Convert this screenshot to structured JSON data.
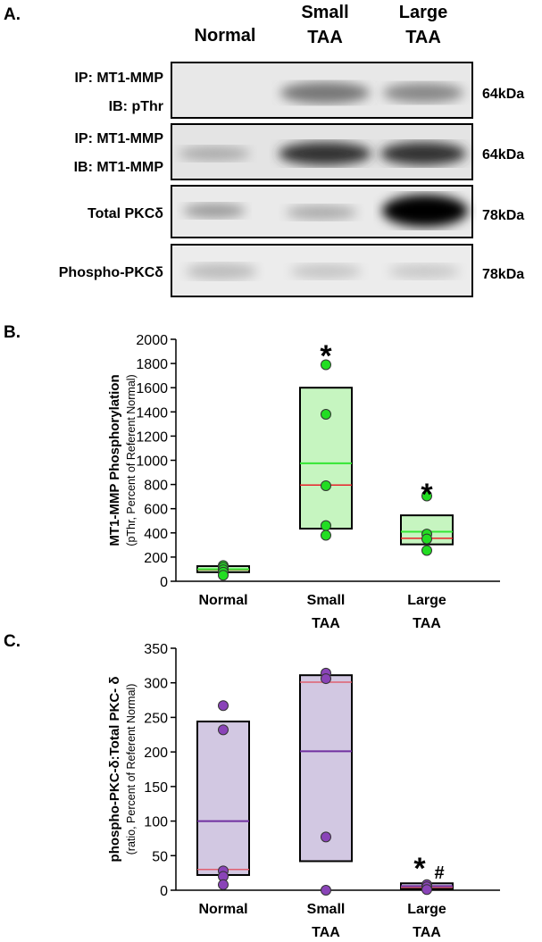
{
  "blot": {
    "panel_label": "A.",
    "columns": [
      [
        "Normal"
      ],
      [
        "Small",
        "TAA"
      ],
      [
        "Large",
        "TAA"
      ]
    ],
    "rows": [
      {
        "label": [
          "IP: MT1-MMP",
          "IB: pThr"
        ],
        "size": "64kDa"
      },
      {
        "label": [
          "IP: MT1-MMP",
          "IB: MT1-MMP"
        ],
        "size": "64kDa"
      },
      {
        "label": [
          "Total PKCδ"
        ],
        "size": "78kDa"
      },
      {
        "label": [
          "Phospho-PKCδ"
        ],
        "size": "78kDa"
      }
    ]
  },
  "chart_data": [
    {
      "type": "box",
      "panel_label": "B.",
      "ylabel": "MT1-MMP Phosphorylation",
      "ylabel_sub": "(pThr, Percent of Referent Normal)",
      "categories": [
        [
          "Normal"
        ],
        [
          "Small",
          "TAA"
        ],
        [
          "Large",
          "TAA"
        ]
      ],
      "ylim": [
        0,
        2000
      ],
      "yticks": [
        0,
        200,
        400,
        600,
        800,
        1000,
        1200,
        1400,
        1600,
        1800,
        2000
      ],
      "box_color": "#c6f5c0",
      "mean_color": "#33e633",
      "median_color": "#e8202a",
      "point_color": "#22dd22",
      "boxes": [
        {
          "low": 75,
          "high": 125,
          "mean": 100,
          "median": 95,
          "points": [
            130,
            115,
            95,
            75,
            50
          ]
        },
        {
          "low": 435,
          "high": 1600,
          "mean": 975,
          "median": 795,
          "points": [
            1790,
            1380,
            790,
            460,
            380
          ]
        },
        {
          "low": 305,
          "high": 545,
          "mean": 410,
          "median": 355,
          "points": [
            705,
            390,
            350,
            255
          ]
        }
      ],
      "annotations": [
        "*",
        "*"
      ]
    },
    {
      "type": "box",
      "panel_label": "C.",
      "ylabel": "phospho-PKC-δ:Total PKC- δ",
      "ylabel_sub": "(ratio, Percent of Referent Normal)",
      "categories": [
        [
          "Normal"
        ],
        [
          "Small",
          "TAA"
        ],
        [
          "Large",
          "TAA"
        ]
      ],
      "ylim": [
        0,
        350
      ],
      "yticks": [
        0,
        50,
        100,
        150,
        200,
        250,
        300,
        350
      ],
      "box_color": "#d2c8e2",
      "mean_color": "#7030a0",
      "median_color": "#e06070",
      "point_color": "#8a44b8",
      "boxes": [
        {
          "low": 22,
          "high": 244,
          "mean": 100,
          "median": 30,
          "points": [
            267,
            232,
            28,
            20,
            8
          ]
        },
        {
          "low": 42,
          "high": 311,
          "mean": 201,
          "median": 301,
          "points": [
            314,
            306,
            77,
            0
          ]
        },
        {
          "low": 2,
          "high": 10,
          "mean": 6,
          "median": 4,
          "points": [
            8,
            5,
            1
          ]
        }
      ],
      "annotations": [
        "*",
        "#"
      ]
    }
  ]
}
